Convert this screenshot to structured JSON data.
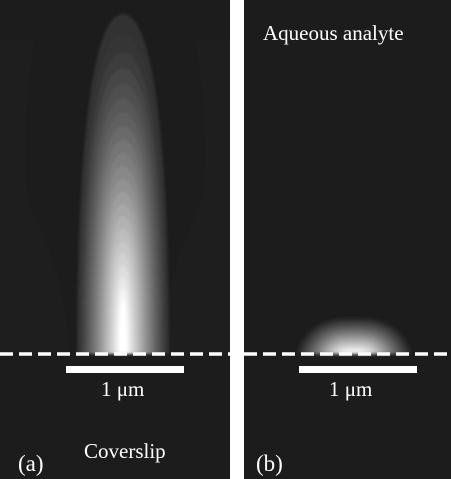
{
  "panels": [
    {
      "letter": "(a)",
      "scale_bar_label": "1 μm",
      "region_label": "Coverslip"
    },
    {
      "letter": "(b)",
      "scale_bar_label": "1 μm",
      "region_label": "Aqueous analyte"
    }
  ],
  "colors": {
    "background": "#1c1c1c",
    "field_peak": "#ffffff",
    "interface_line": "#ffffff",
    "separator": "#ffffff"
  }
}
